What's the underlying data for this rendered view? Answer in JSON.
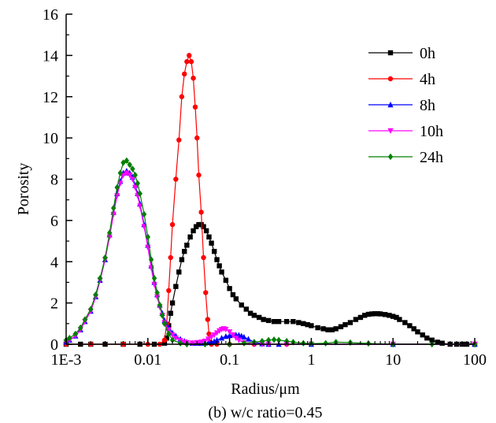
{
  "chart_data": {
    "type": "line",
    "title": "",
    "caption": "(b) w/c ratio=0.45",
    "xlabel": "Radius/μm",
    "ylabel": "Porosity",
    "xscale": "log",
    "xlim": [
      0.001,
      100
    ],
    "ylim": [
      0,
      16
    ],
    "xticks": [
      0.001,
      0.01,
      0.1,
      1,
      10,
      100
    ],
    "xtick_labels": [
      "1E-3",
      "0.01",
      "0.1",
      "1",
      "10",
      "100"
    ],
    "yticks": [
      0,
      2,
      4,
      6,
      8,
      10,
      12,
      14,
      16
    ],
    "ytick_labels": [
      "0",
      "2",
      "4",
      "6",
      "8",
      "10",
      "12",
      "14",
      "16"
    ],
    "grid": false,
    "legend": "top-right",
    "series": [
      {
        "name": "0h",
        "color": "#000000",
        "marker": "square",
        "x": [
          0.001,
          0.0015,
          0.002,
          0.003,
          0.005,
          0.008,
          0.012,
          0.016,
          0.017,
          0.018,
          0.019,
          0.02,
          0.022,
          0.024,
          0.026,
          0.028,
          0.03,
          0.033,
          0.036,
          0.039,
          0.042,
          0.045,
          0.048,
          0.052,
          0.056,
          0.06,
          0.065,
          0.07,
          0.075,
          0.08,
          0.09,
          0.1,
          0.11,
          0.12,
          0.14,
          0.16,
          0.18,
          0.2,
          0.23,
          0.26,
          0.3,
          0.35,
          0.4,
          0.5,
          0.6,
          0.7,
          0.8,
          0.9,
          1.0,
          1.2,
          1.4,
          1.6,
          1.8,
          2.0,
          2.3,
          2.6,
          3.0,
          3.5,
          4.0,
          4.5,
          5.0,
          5.5,
          6.0,
          6.5,
          7.0,
          8.0,
          9.0,
          10,
          11,
          12,
          14,
          16,
          18,
          20,
          23,
          26,
          30,
          35,
          40,
          50,
          60,
          70,
          80,
          100
        ],
        "y": [
          0,
          0,
          0,
          0,
          0,
          0,
          0,
          0.05,
          0.3,
          0.9,
          1.5,
          2.0,
          2.8,
          3.5,
          4.1,
          4.5,
          4.8,
          5.2,
          5.5,
          5.7,
          5.8,
          5.8,
          5.7,
          5.5,
          5.2,
          4.9,
          4.5,
          4.1,
          3.8,
          3.5,
          3.1,
          2.7,
          2.4,
          2.2,
          1.9,
          1.7,
          1.5,
          1.4,
          1.3,
          1.2,
          1.15,
          1.1,
          1.1,
          1.1,
          1.1,
          1.05,
          1.0,
          0.95,
          0.9,
          0.8,
          0.75,
          0.7,
          0.7,
          0.75,
          0.85,
          0.95,
          1.05,
          1.2,
          1.3,
          1.4,
          1.45,
          1.47,
          1.48,
          1.48,
          1.47,
          1.44,
          1.4,
          1.35,
          1.3,
          1.2,
          1.05,
          0.9,
          0.75,
          0.6,
          0.45,
          0.3,
          0.2,
          0.1,
          0.05,
          0,
          0,
          0,
          0,
          0
        ]
      },
      {
        "name": "4h",
        "color": "#ff0000",
        "marker": "circle",
        "x": [
          0.001,
          0.002,
          0.005,
          0.01,
          0.014,
          0.016,
          0.017,
          0.018,
          0.019,
          0.02,
          0.022,
          0.024,
          0.026,
          0.028,
          0.03,
          0.032,
          0.034,
          0.036,
          0.038,
          0.04,
          0.042,
          0.045,
          0.048,
          0.051,
          0.054,
          0.056,
          0.058,
          0.06,
          0.07,
          0.1,
          0.2,
          0.5,
          1,
          10,
          100
        ],
        "y": [
          0,
          0,
          0,
          0,
          0,
          0.2,
          1.0,
          2.6,
          4.2,
          5.8,
          8.0,
          9.9,
          12.0,
          13.1,
          13.7,
          14.0,
          13.7,
          12.9,
          11.5,
          10.0,
          8.2,
          6.4,
          4.2,
          2.5,
          1.2,
          0.5,
          0.1,
          0,
          0,
          0,
          0,
          0,
          0,
          0,
          0
        ]
      },
      {
        "name": "8h",
        "color": "#0000ff",
        "marker": "triangle-up",
        "x": [
          0.001,
          0.0011,
          0.0013,
          0.0015,
          0.0017,
          0.002,
          0.0023,
          0.0026,
          0.003,
          0.0034,
          0.0038,
          0.0042,
          0.0046,
          0.005,
          0.0055,
          0.006,
          0.0065,
          0.007,
          0.0075,
          0.008,
          0.009,
          0.01,
          0.011,
          0.012,
          0.013,
          0.014,
          0.015,
          0.016,
          0.018,
          0.02,
          0.022,
          0.025,
          0.028,
          0.03,
          0.035,
          0.04,
          0.045,
          0.05,
          0.055,
          0.06,
          0.065,
          0.07,
          0.08,
          0.09,
          0.1,
          0.11,
          0.12,
          0.13,
          0.14,
          0.15,
          0.17,
          0.2,
          0.25,
          0.3,
          0.4,
          1,
          10,
          100
        ],
        "y": [
          0.1,
          0.2,
          0.4,
          0.7,
          1.1,
          1.6,
          2.3,
          3.1,
          4.1,
          5.3,
          6.4,
          7.3,
          7.9,
          8.3,
          8.4,
          8.3,
          8.1,
          7.7,
          7.3,
          6.8,
          5.8,
          4.8,
          3.8,
          3.0,
          2.4,
          1.9,
          1.5,
          1.15,
          0.8,
          0.55,
          0.4,
          0.25,
          0.15,
          0.1,
          0.05,
          0.05,
          0.05,
          0.06,
          0.08,
          0.1,
          0.14,
          0.2,
          0.3,
          0.38,
          0.42,
          0.45,
          0.45,
          0.44,
          0.4,
          0.35,
          0.25,
          0.1,
          0.02,
          0,
          0,
          0,
          0,
          0
        ]
      },
      {
        "name": "10h",
        "color": "#ff00ff",
        "marker": "triangle-down",
        "x": [
          0.001,
          0.0011,
          0.0013,
          0.0015,
          0.0017,
          0.002,
          0.0023,
          0.0026,
          0.003,
          0.0034,
          0.0038,
          0.0042,
          0.0046,
          0.005,
          0.0055,
          0.006,
          0.0065,
          0.007,
          0.0075,
          0.008,
          0.009,
          0.01,
          0.011,
          0.012,
          0.013,
          0.014,
          0.015,
          0.016,
          0.018,
          0.02,
          0.022,
          0.025,
          0.028,
          0.03,
          0.035,
          0.04,
          0.045,
          0.05,
          0.055,
          0.06,
          0.065,
          0.07,
          0.075,
          0.08,
          0.085,
          0.09,
          0.1,
          0.11,
          0.12,
          0.13,
          0.15,
          0.2,
          0.25,
          0.3,
          0.5,
          1,
          10,
          100
        ],
        "y": [
          0.1,
          0.2,
          0.4,
          0.7,
          1.1,
          1.6,
          2.3,
          3.1,
          4.1,
          5.2,
          6.3,
          7.2,
          7.8,
          8.2,
          8.3,
          8.2,
          8.0,
          7.6,
          7.2,
          6.7,
          5.7,
          4.7,
          3.7,
          2.9,
          2.3,
          1.8,
          1.4,
          1.05,
          0.7,
          0.45,
          0.3,
          0.18,
          0.1,
          0.08,
          0.06,
          0.08,
          0.1,
          0.15,
          0.25,
          0.35,
          0.45,
          0.55,
          0.65,
          0.72,
          0.75,
          0.72,
          0.6,
          0.45,
          0.3,
          0.2,
          0.08,
          0,
          0,
          0,
          0,
          0,
          0,
          0
        ]
      },
      {
        "name": "24h",
        "color": "#008000",
        "marker": "diamond",
        "x": [
          0.001,
          0.0011,
          0.0013,
          0.0015,
          0.0017,
          0.002,
          0.0023,
          0.0026,
          0.003,
          0.0034,
          0.0038,
          0.0042,
          0.0046,
          0.005,
          0.0055,
          0.006,
          0.0065,
          0.007,
          0.0075,
          0.008,
          0.009,
          0.01,
          0.011,
          0.012,
          0.013,
          0.014,
          0.015,
          0.016,
          0.018,
          0.02,
          0.025,
          0.03,
          0.05,
          0.1,
          0.15,
          0.2,
          0.25,
          0.3,
          0.35,
          0.4,
          0.5,
          0.6,
          0.8,
          1,
          1.5,
          2,
          3,
          5,
          10,
          30,
          100
        ],
        "y": [
          0.2,
          0.3,
          0.5,
          0.8,
          1.2,
          1.7,
          2.4,
          3.2,
          4.2,
          5.4,
          6.6,
          7.6,
          8.3,
          8.8,
          8.9,
          8.7,
          8.5,
          8.2,
          7.8,
          7.3,
          6.3,
          5.2,
          4.1,
          3.2,
          2.5,
          1.9,
          1.4,
          1.0,
          0.5,
          0.2,
          0.05,
          0,
          0,
          0,
          0.05,
          0.1,
          0.15,
          0.2,
          0.22,
          0.2,
          0.15,
          0.1,
          0.05,
          0.03,
          0.05,
          0.1,
          0.08,
          0.04,
          0,
          0,
          0
        ]
      }
    ]
  }
}
